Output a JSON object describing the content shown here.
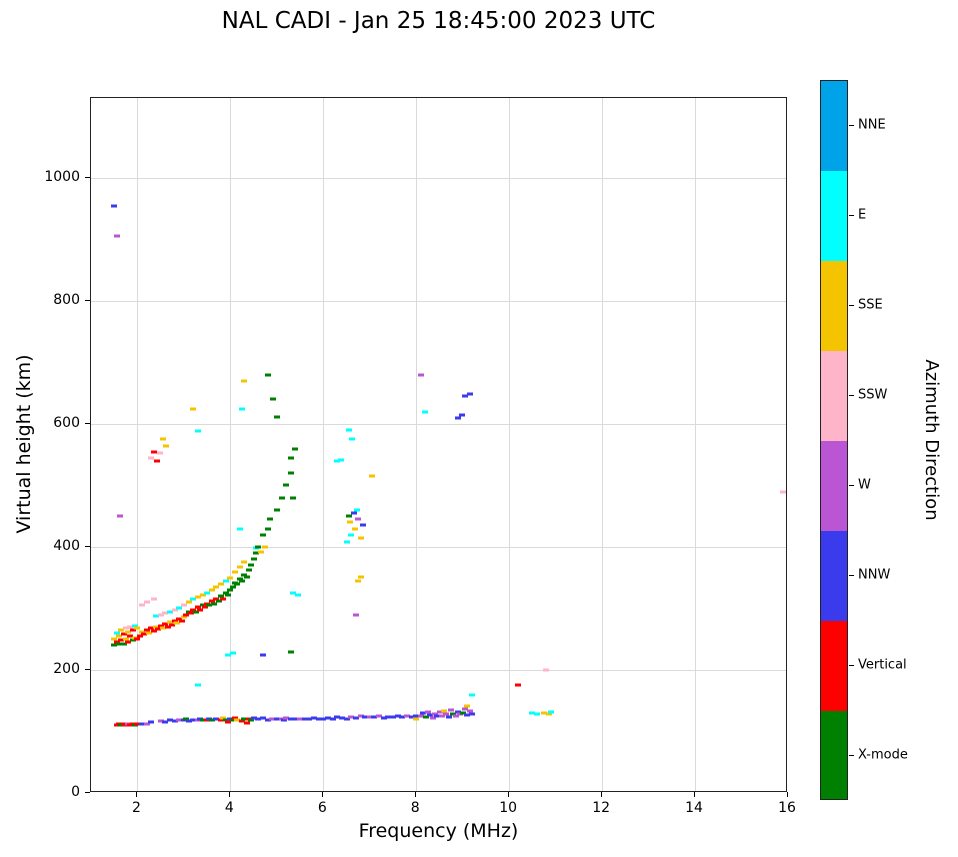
{
  "colorbar": {
    "label": "Azimuth Direction",
    "entries": [
      {
        "label": "NNE",
        "color": "#00A2E8"
      },
      {
        "label": "E",
        "color": "#00FFFF"
      },
      {
        "label": "SSE",
        "color": "#F5C400"
      },
      {
        "label": "SSW",
        "color": "#FFB5C9"
      },
      {
        "label": "W",
        "color": "#BA55D3"
      },
      {
        "label": "NNW",
        "color": "#3B3BEE"
      },
      {
        "label": "Vertical",
        "color": "#FF0000"
      },
      {
        "label": "X-mode",
        "color": "#008000"
      }
    ]
  },
  "chart_data": {
    "type": "scatter",
    "title": "NAL CADI - Jan 25 18:45:00 2023 UTC",
    "xlabel": "Frequency (MHz)",
    "ylabel": "Virtual height (km)",
    "xlim": [
      1,
      16
    ],
    "ylim": [
      0,
      1130
    ],
    "x_ticks": [
      2,
      4,
      6,
      8,
      10,
      12,
      14,
      16
    ],
    "y_ticks": [
      0,
      200,
      400,
      600,
      800,
      1000
    ],
    "grid": true,
    "legend_position": "right-colorbar",
    "categories": [
      "NNE",
      "E",
      "SSE",
      "SSW",
      "W",
      "NNW",
      "Vertical",
      "X-mode"
    ],
    "palette": [
      "#00A2E8",
      "#00FFFF",
      "#F5C400",
      "#FFB5C9",
      "#BA55D3",
      "#3B3BEE",
      "#FF0000",
      "#008000"
    ],
    "points_format": "[frequency_MHz, virtual_height_km, category_index]",
    "points": [
      [
        1.55,
        110,
        6
      ],
      [
        1.6,
        112,
        6
      ],
      [
        1.65,
        110,
        7
      ],
      [
        1.7,
        112,
        6
      ],
      [
        1.75,
        110,
        6
      ],
      [
        1.8,
        113,
        4
      ],
      [
        1.85,
        111,
        6
      ],
      [
        1.9,
        112,
        6
      ],
      [
        1.95,
        110,
        7
      ],
      [
        2.0,
        112,
        6
      ],
      [
        2.1,
        113,
        5
      ],
      [
        2.2,
        112,
        4
      ],
      [
        2.3,
        115,
        5
      ],
      [
        2.5,
        117,
        4
      ],
      [
        2.6,
        115,
        5
      ],
      [
        2.7,
        118,
        5
      ],
      [
        2.8,
        117,
        5
      ],
      [
        2.9,
        119,
        4
      ],
      [
        3.0,
        118,
        5
      ],
      [
        3.05,
        120,
        7
      ],
      [
        3.1,
        117,
        5
      ],
      [
        3.2,
        119,
        5
      ],
      [
        3.3,
        118,
        4
      ],
      [
        3.35,
        120,
        5
      ],
      [
        3.4,
        119,
        7
      ],
      [
        3.5,
        118,
        6
      ],
      [
        3.55,
        121,
        5
      ],
      [
        3.6,
        119,
        7
      ],
      [
        3.7,
        120,
        5
      ],
      [
        3.8,
        118,
        6
      ],
      [
        3.85,
        122,
        2
      ],
      [
        3.9,
        119,
        7
      ],
      [
        3.95,
        116,
        6
      ],
      [
        4.0,
        121,
        5
      ],
      [
        4.05,
        118,
        7
      ],
      [
        4.1,
        122,
        6
      ],
      [
        4.15,
        119,
        2
      ],
      [
        4.25,
        117,
        6
      ],
      [
        4.3,
        120,
        7
      ],
      [
        4.35,
        114,
        6
      ],
      [
        4.4,
        121,
        6
      ],
      [
        4.45,
        118,
        7
      ],
      [
        4.5,
        122,
        5
      ],
      [
        4.6,
        120,
        5
      ],
      [
        4.7,
        122,
        5
      ],
      [
        4.8,
        119,
        5
      ],
      [
        4.9,
        121,
        4
      ],
      [
        5.0,
        120,
        5
      ],
      [
        5.1,
        121,
        4
      ],
      [
        5.15,
        119,
        5
      ],
      [
        5.2,
        122,
        4
      ],
      [
        5.3,
        120,
        5
      ],
      [
        5.4,
        121,
        5
      ],
      [
        5.5,
        120,
        4
      ],
      [
        5.6,
        121,
        5
      ],
      [
        5.7,
        120,
        5
      ],
      [
        5.8,
        122,
        5
      ],
      [
        5.9,
        121,
        5
      ],
      [
        6.0,
        120,
        5
      ],
      [
        6.1,
        122,
        5
      ],
      [
        6.2,
        121,
        5
      ],
      [
        6.3,
        123,
        5
      ],
      [
        6.4,
        122,
        5
      ],
      [
        6.5,
        121,
        5
      ],
      [
        6.6,
        124,
        4
      ],
      [
        6.7,
        122,
        5
      ],
      [
        6.8,
        125,
        4
      ],
      [
        6.9,
        123,
        5
      ],
      [
        7.0,
        124,
        4
      ],
      [
        7.1,
        123,
        5
      ],
      [
        7.2,
        125,
        4
      ],
      [
        7.3,
        122,
        5
      ],
      [
        7.4,
        124,
        5
      ],
      [
        7.5,
        123,
        5
      ],
      [
        7.6,
        125,
        5
      ],
      [
        7.7,
        123,
        5
      ],
      [
        7.8,
        126,
        4
      ],
      [
        7.9,
        124,
        5
      ],
      [
        8.0,
        121,
        2
      ],
      [
        8.0,
        125,
        5
      ],
      [
        8.1,
        126,
        4
      ],
      [
        8.15,
        130,
        5
      ],
      [
        8.2,
        124,
        7
      ],
      [
        8.25,
        132,
        4
      ],
      [
        8.3,
        127,
        5
      ],
      [
        8.35,
        122,
        4
      ],
      [
        8.4,
        129,
        4
      ],
      [
        8.45,
        125,
        5
      ],
      [
        8.5,
        131,
        4
      ],
      [
        8.55,
        126,
        4
      ],
      [
        8.6,
        133,
        2
      ],
      [
        8.65,
        128,
        4
      ],
      [
        8.7,
        124,
        5
      ],
      [
        8.75,
        135,
        4
      ],
      [
        8.8,
        129,
        7
      ],
      [
        8.85,
        126,
        4
      ],
      [
        8.9,
        132,
        5
      ],
      [
        8.95,
        128,
        4
      ],
      [
        9.0,
        130,
        7
      ],
      [
        9.05,
        136,
        4
      ],
      [
        9.1,
        127,
        5
      ],
      [
        9.1,
        141,
        2
      ],
      [
        9.15,
        133,
        4
      ],
      [
        9.2,
        129,
        5
      ],
      [
        9.2,
        160,
        1
      ],
      [
        10.2,
        175,
        6
      ],
      [
        10.5,
        130,
        1
      ],
      [
        10.6,
        128,
        1
      ],
      [
        10.75,
        130,
        2
      ],
      [
        10.85,
        128,
        2
      ],
      [
        10.9,
        131,
        1
      ],
      [
        10.8,
        200,
        3
      ],
      [
        1.5,
        240,
        7
      ],
      [
        1.5,
        250,
        2
      ],
      [
        1.55,
        245,
        6
      ],
      [
        1.55,
        260,
        1
      ],
      [
        1.6,
        242,
        7
      ],
      [
        1.6,
        255,
        2
      ],
      [
        1.65,
        248,
        6
      ],
      [
        1.65,
        265,
        2
      ],
      [
        1.7,
        243,
        7
      ],
      [
        1.7,
        258,
        6
      ],
      [
        1.75,
        250,
        2
      ],
      [
        1.75,
        268,
        3
      ],
      [
        1.8,
        245,
        6
      ],
      [
        1.8,
        262,
        2
      ],
      [
        1.85,
        255,
        6
      ],
      [
        1.85,
        270,
        3
      ],
      [
        1.9,
        248,
        7
      ],
      [
        1.9,
        265,
        6
      ],
      [
        1.95,
        252,
        2
      ],
      [
        1.95,
        272,
        1
      ],
      [
        2.0,
        250,
        6
      ],
      [
        2.0,
        268,
        2
      ],
      [
        2.05,
        255,
        6
      ],
      [
        2.1,
        262,
        2
      ],
      [
        2.1,
        305,
        3
      ],
      [
        2.15,
        258,
        6
      ],
      [
        2.2,
        265,
        6
      ],
      [
        2.2,
        310,
        3
      ],
      [
        2.25,
        260,
        2
      ],
      [
        2.3,
        268,
        6
      ],
      [
        2.35,
        315,
        3
      ],
      [
        2.35,
        263,
        6
      ],
      [
        2.4,
        270,
        2
      ],
      [
        2.4,
        288,
        1
      ],
      [
        2.45,
        266,
        6
      ],
      [
        2.5,
        272,
        6
      ],
      [
        2.5,
        290,
        3
      ],
      [
        2.55,
        268,
        2
      ],
      [
        2.6,
        275,
        6
      ],
      [
        2.6,
        292,
        3
      ],
      [
        2.65,
        270,
        6
      ],
      [
        2.7,
        278,
        2
      ],
      [
        2.7,
        295,
        1
      ],
      [
        2.75,
        273,
        6
      ],
      [
        2.8,
        280,
        6
      ],
      [
        2.8,
        298,
        3
      ],
      [
        2.85,
        276,
        2
      ],
      [
        2.9,
        283,
        6
      ],
      [
        2.9,
        300,
        1
      ],
      [
        2.95,
        279,
        6
      ],
      [
        3.0,
        286,
        2
      ],
      [
        3.0,
        305,
        3
      ],
      [
        3.05,
        290,
        6
      ],
      [
        3.1,
        295,
        7
      ],
      [
        3.1,
        310,
        2
      ],
      [
        3.15,
        292,
        6
      ],
      [
        3.2,
        298,
        6
      ],
      [
        3.2,
        315,
        1
      ],
      [
        3.25,
        295,
        7
      ],
      [
        3.3,
        302,
        6
      ],
      [
        3.3,
        318,
        2
      ],
      [
        3.35,
        298,
        6
      ],
      [
        3.4,
        305,
        7
      ],
      [
        3.4,
        322,
        2
      ],
      [
        3.45,
        302,
        6
      ],
      [
        3.5,
        308,
        6
      ],
      [
        3.5,
        325,
        1
      ],
      [
        3.55,
        305,
        7
      ],
      [
        3.6,
        312,
        6
      ],
      [
        3.6,
        330,
        2
      ],
      [
        3.65,
        308,
        7
      ],
      [
        3.7,
        315,
        6
      ],
      [
        3.7,
        335,
        2
      ],
      [
        3.75,
        312,
        7
      ],
      [
        3.8,
        320,
        7
      ],
      [
        3.8,
        340,
        2
      ],
      [
        3.85,
        316,
        6
      ],
      [
        3.9,
        325,
        7
      ],
      [
        3.9,
        345,
        1
      ],
      [
        3.95,
        322,
        7
      ],
      [
        4.0,
        330,
        7
      ],
      [
        4.0,
        350,
        2
      ],
      [
        4.05,
        335,
        7
      ],
      [
        4.1,
        342,
        7
      ],
      [
        4.1,
        360,
        2
      ],
      [
        4.15,
        340,
        7
      ],
      [
        4.2,
        348,
        7
      ],
      [
        4.2,
        368,
        2
      ],
      [
        4.2,
        430,
        1
      ],
      [
        4.25,
        345,
        7
      ],
      [
        4.3,
        355,
        7
      ],
      [
        4.3,
        375,
        2
      ],
      [
        4.35,
        352,
        7
      ],
      [
        4.4,
        362,
        7
      ],
      [
        4.45,
        370,
        7
      ],
      [
        4.5,
        380,
        7
      ],
      [
        4.55,
        390,
        7
      ],
      [
        4.55,
        398,
        1
      ],
      [
        4.6,
        400,
        7
      ],
      [
        4.65,
        392,
        2
      ],
      [
        4.7,
        420,
        7
      ],
      [
        4.75,
        400,
        2
      ],
      [
        4.8,
        430,
        7
      ],
      [
        4.85,
        445,
        7
      ],
      [
        5.0,
        460,
        7
      ],
      [
        5.1,
        480,
        7
      ],
      [
        5.2,
        500,
        7
      ],
      [
        5.3,
        520,
        7
      ],
      [
        5.3,
        545,
        7
      ],
      [
        5.4,
        560,
        7
      ],
      [
        5.35,
        325,
        1
      ],
      [
        5.45,
        322,
        1
      ],
      [
        3.3,
        175,
        1
      ],
      [
        3.95,
        225,
        1
      ],
      [
        4.05,
        228,
        1
      ],
      [
        4.7,
        225,
        5
      ],
      [
        5.3,
        230,
        7
      ],
      [
        6.5,
        408,
        1
      ],
      [
        6.55,
        450,
        7
      ],
      [
        6.58,
        440,
        2
      ],
      [
        6.6,
        420,
        1
      ],
      [
        6.65,
        455,
        5
      ],
      [
        6.68,
        430,
        2
      ],
      [
        6.72,
        460,
        1
      ],
      [
        6.75,
        445,
        4
      ],
      [
        6.8,
        415,
        2
      ],
      [
        6.85,
        435,
        5
      ],
      [
        6.7,
        290,
        4
      ],
      [
        6.75,
        345,
        2
      ],
      [
        6.82,
        352,
        2
      ],
      [
        1.5,
        955,
        5
      ],
      [
        1.55,
        905,
        4
      ],
      [
        1.62,
        450,
        4
      ],
      [
        2.3,
        545,
        3
      ],
      [
        2.35,
        555,
        6
      ],
      [
        2.42,
        540,
        6
      ],
      [
        2.48,
        552,
        3
      ],
      [
        2.55,
        575,
        2
      ],
      [
        2.62,
        565,
        2
      ],
      [
        3.2,
        625,
        2
      ],
      [
        3.3,
        588,
        1
      ],
      [
        4.25,
        625,
        1
      ],
      [
        4.3,
        670,
        2
      ],
      [
        4.8,
        680,
        7
      ],
      [
        4.92,
        640,
        7
      ],
      [
        5.0,
        612,
        7
      ],
      [
        5.35,
        480,
        7
      ],
      [
        6.3,
        540,
        1
      ],
      [
        6.38,
        542,
        1
      ],
      [
        6.55,
        590,
        1
      ],
      [
        6.62,
        575,
        1
      ],
      [
        7.05,
        515,
        2
      ],
      [
        8.1,
        680,
        4
      ],
      [
        8.18,
        620,
        1
      ],
      [
        8.9,
        610,
        5
      ],
      [
        8.98,
        614,
        5
      ],
      [
        9.05,
        645,
        5
      ],
      [
        9.15,
        648,
        5
      ],
      [
        15.9,
        490,
        3
      ]
    ]
  }
}
